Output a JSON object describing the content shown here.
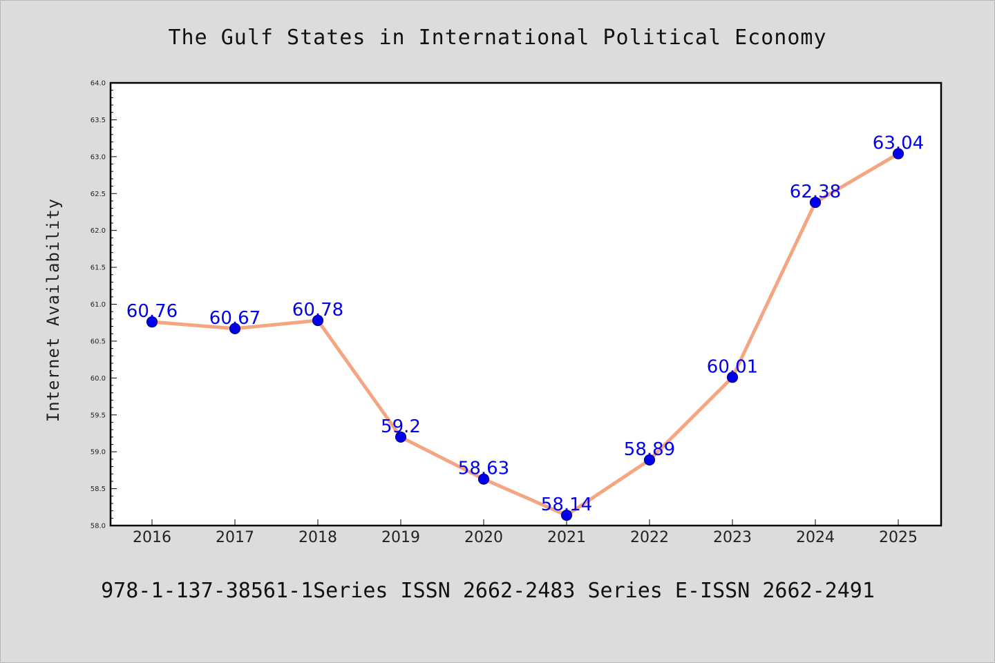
{
  "chart_data": {
    "type": "line",
    "title": "The Gulf States in International Political Economy",
    "ylabel": "Internet Availability",
    "xlabel": "",
    "categories": [
      "2016",
      "2017",
      "2018",
      "2019",
      "2020",
      "2021",
      "2022",
      "2023",
      "2024",
      "2025"
    ],
    "series": [
      {
        "values": [
          60.76,
          60.67,
          60.78,
          59.2,
          58.63,
          58.14,
          58.89,
          60.01,
          62.38,
          63.04
        ]
      }
    ],
    "data_labels": [
      "60.76",
      "60.67",
      "60.78",
      "59.2",
      "58.63",
      "58.14",
      "58.89",
      "60.01",
      "62.38",
      "63.04"
    ],
    "ylim": [
      58.0,
      64.0
    ],
    "yticks": [
      58.0,
      58.5,
      59.0,
      59.5,
      60.0,
      60.5,
      61.0,
      61.5,
      62.0,
      62.5,
      63.0,
      63.5,
      64.0
    ],
    "ytick_labels": [
      "58.0",
      "58.5",
      "59.0",
      "59.5",
      "60.0",
      "60.5",
      "61.0",
      "61.5",
      "62.0",
      "62.5",
      "63.0",
      "63.5",
      "64.0"
    ],
    "grid": false,
    "legend": "none",
    "colors": {
      "line": "#f4a582",
      "marker": "#0000ee",
      "marker_edge": "#000080",
      "data_label": "#0000ee",
      "plot_background": "#ffffff",
      "figure_background": "#dcdcdc"
    },
    "footer": "978-1-137-38561-1Series ISSN 2662-2483 Series E-ISSN 2662-2491"
  }
}
